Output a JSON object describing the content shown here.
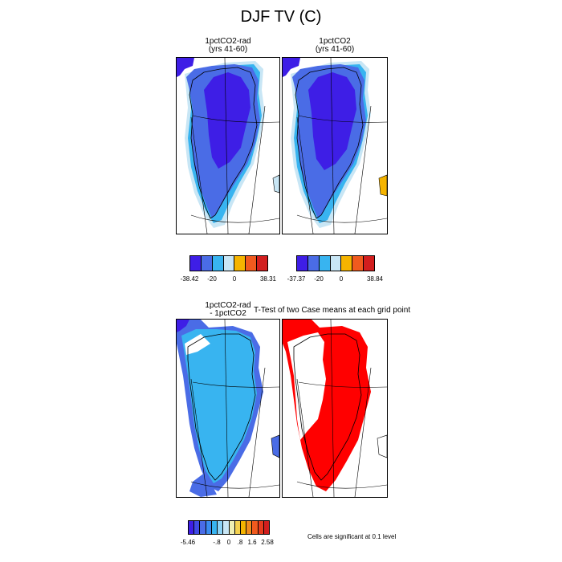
{
  "title": "DJF TV (C)",
  "panels": {
    "p1": {
      "title_line1": "1pctCO2-rad",
      "title_line2": "(yrs 41-60)"
    },
    "p2": {
      "title_line1": "1pctCO2",
      "title_line2": "(yrs 41-60)"
    },
    "p3": {
      "title_line1": "1pctCO2-rad",
      "title_line2": "- 1pctCO2"
    },
    "p4": {
      "title_line1": "T-Test of two Case means at each grid point"
    }
  },
  "colorbars": {
    "cb1": {
      "labels": [
        "-38.42",
        "-20",
        "0",
        "38.31"
      ],
      "colors": [
        "#3e1ee6",
        "#4a6ce6",
        "#38b4f0",
        "#c8e6f5",
        "#f5b400",
        "#f05a1e",
        "#d21e1e"
      ]
    },
    "cb2": {
      "labels": [
        "-37.37",
        "-20",
        "0",
        "38.84"
      ],
      "colors": [
        "#3e1ee6",
        "#4a6ce6",
        "#38b4f0",
        "#c8e6f5",
        "#f5b400",
        "#f05a1e",
        "#d21e1e"
      ]
    },
    "cb3": {
      "labels": [
        "-5.46",
        "-.8",
        "0",
        ".8",
        "1.6",
        "2.58"
      ],
      "colors": [
        "#3e1ee6",
        "#3f4ae6",
        "#4a6ce6",
        "#3a8cf0",
        "#38b4f0",
        "#8cd2f5",
        "#c8e6f5",
        "#f0f0b4",
        "#f5d250",
        "#f5b400",
        "#f08c1e",
        "#f05a1e",
        "#e63c1e",
        "#d21e1e"
      ]
    }
  },
  "significance_note": "Cells are significant at 0.1 level",
  "colors": {
    "deep_blue": "#3e1ee6",
    "mid_blue": "#4a6ce6",
    "light_blue": "#38b4f0",
    "pale_blue": "#c8e6f5",
    "significant_red": "#ff0000"
  }
}
